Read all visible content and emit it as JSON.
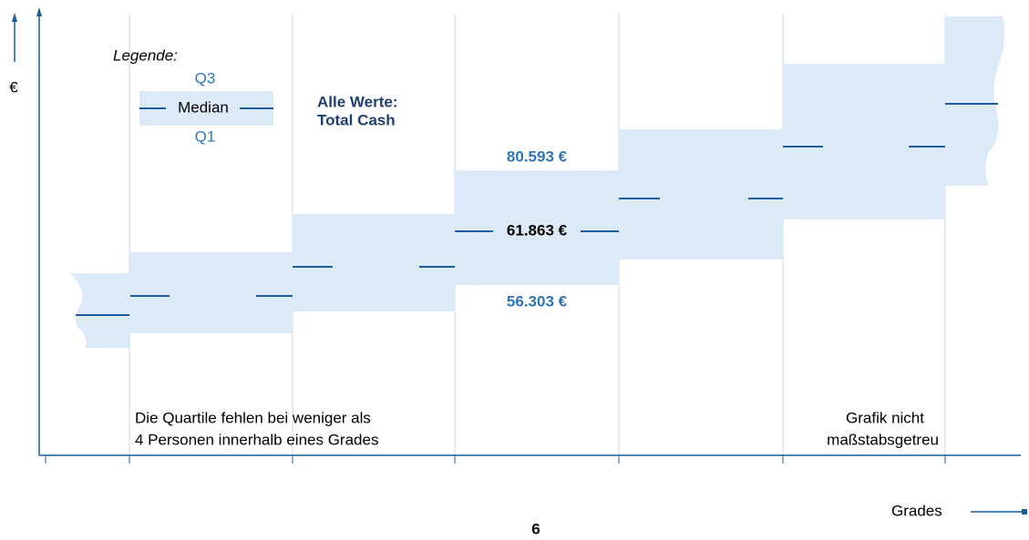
{
  "y_axis_label": "€",
  "x_axis_label": "Grades",
  "legend": {
    "title": "Legende:",
    "q3": "Q3",
    "median": "Median",
    "q1": "Q1"
  },
  "note_values": [
    "Alle Werte:",
    "Total Cash"
  ],
  "example": {
    "q3": "80.593 €",
    "median": "61.863 €",
    "q1": "56.303 €"
  },
  "note_quartiles": [
    "Die Quartile fehlen bei weniger als",
    "4 Personen innerhalb eines Grades"
  ],
  "note_scale": [
    "Grafik nicht",
    "maßstabsgetreu"
  ],
  "page_number": "6"
}
